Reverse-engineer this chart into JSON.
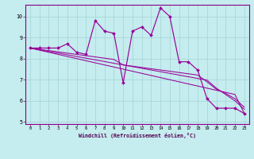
{
  "background_color": "#c5ecee",
  "line_color": "#990099",
  "grid_color": "#a8d8da",
  "xlabel": "Windchill (Refroidissement éolien,°C)",
  "xlim": [
    -0.5,
    23.5
  ],
  "ylim": [
    4.9,
    10.55
  ],
  "xticks": [
    0,
    1,
    2,
    3,
    4,
    5,
    6,
    7,
    8,
    9,
    10,
    11,
    12,
    13,
    14,
    15,
    16,
    17,
    18,
    19,
    20,
    21,
    22,
    23
  ],
  "yticks": [
    5,
    6,
    7,
    8,
    9,
    10
  ],
  "series_main": [
    8.5,
    8.5,
    8.5,
    8.5,
    8.7,
    8.3,
    8.2,
    9.8,
    9.3,
    9.2,
    6.85,
    9.3,
    9.5,
    9.1,
    10.4,
    10.0,
    7.85,
    7.85,
    7.45,
    6.1,
    5.65,
    5.65,
    5.65,
    5.4
  ],
  "series_trend1": [
    8.5,
    8.4,
    8.3,
    8.2,
    8.1,
    8.0,
    7.9,
    7.8,
    7.7,
    7.6,
    7.5,
    7.4,
    7.3,
    7.2,
    7.1,
    7.0,
    6.9,
    6.8,
    6.7,
    6.6,
    6.5,
    6.4,
    6.3,
    5.4
  ],
  "series_trend2": [
    8.5,
    8.42,
    8.34,
    8.26,
    8.18,
    8.1,
    8.02,
    7.94,
    7.86,
    7.78,
    7.7,
    7.62,
    7.54,
    7.46,
    7.38,
    7.3,
    7.22,
    7.14,
    7.06,
    6.98,
    6.6,
    6.3,
    6.0,
    5.6
  ],
  "series_trend3": [
    8.5,
    8.44,
    8.38,
    8.32,
    8.26,
    8.2,
    8.14,
    8.08,
    8.02,
    7.96,
    7.7,
    7.64,
    7.58,
    7.52,
    7.46,
    7.4,
    7.34,
    7.28,
    7.22,
    6.9,
    6.55,
    6.35,
    6.1,
    5.7
  ]
}
